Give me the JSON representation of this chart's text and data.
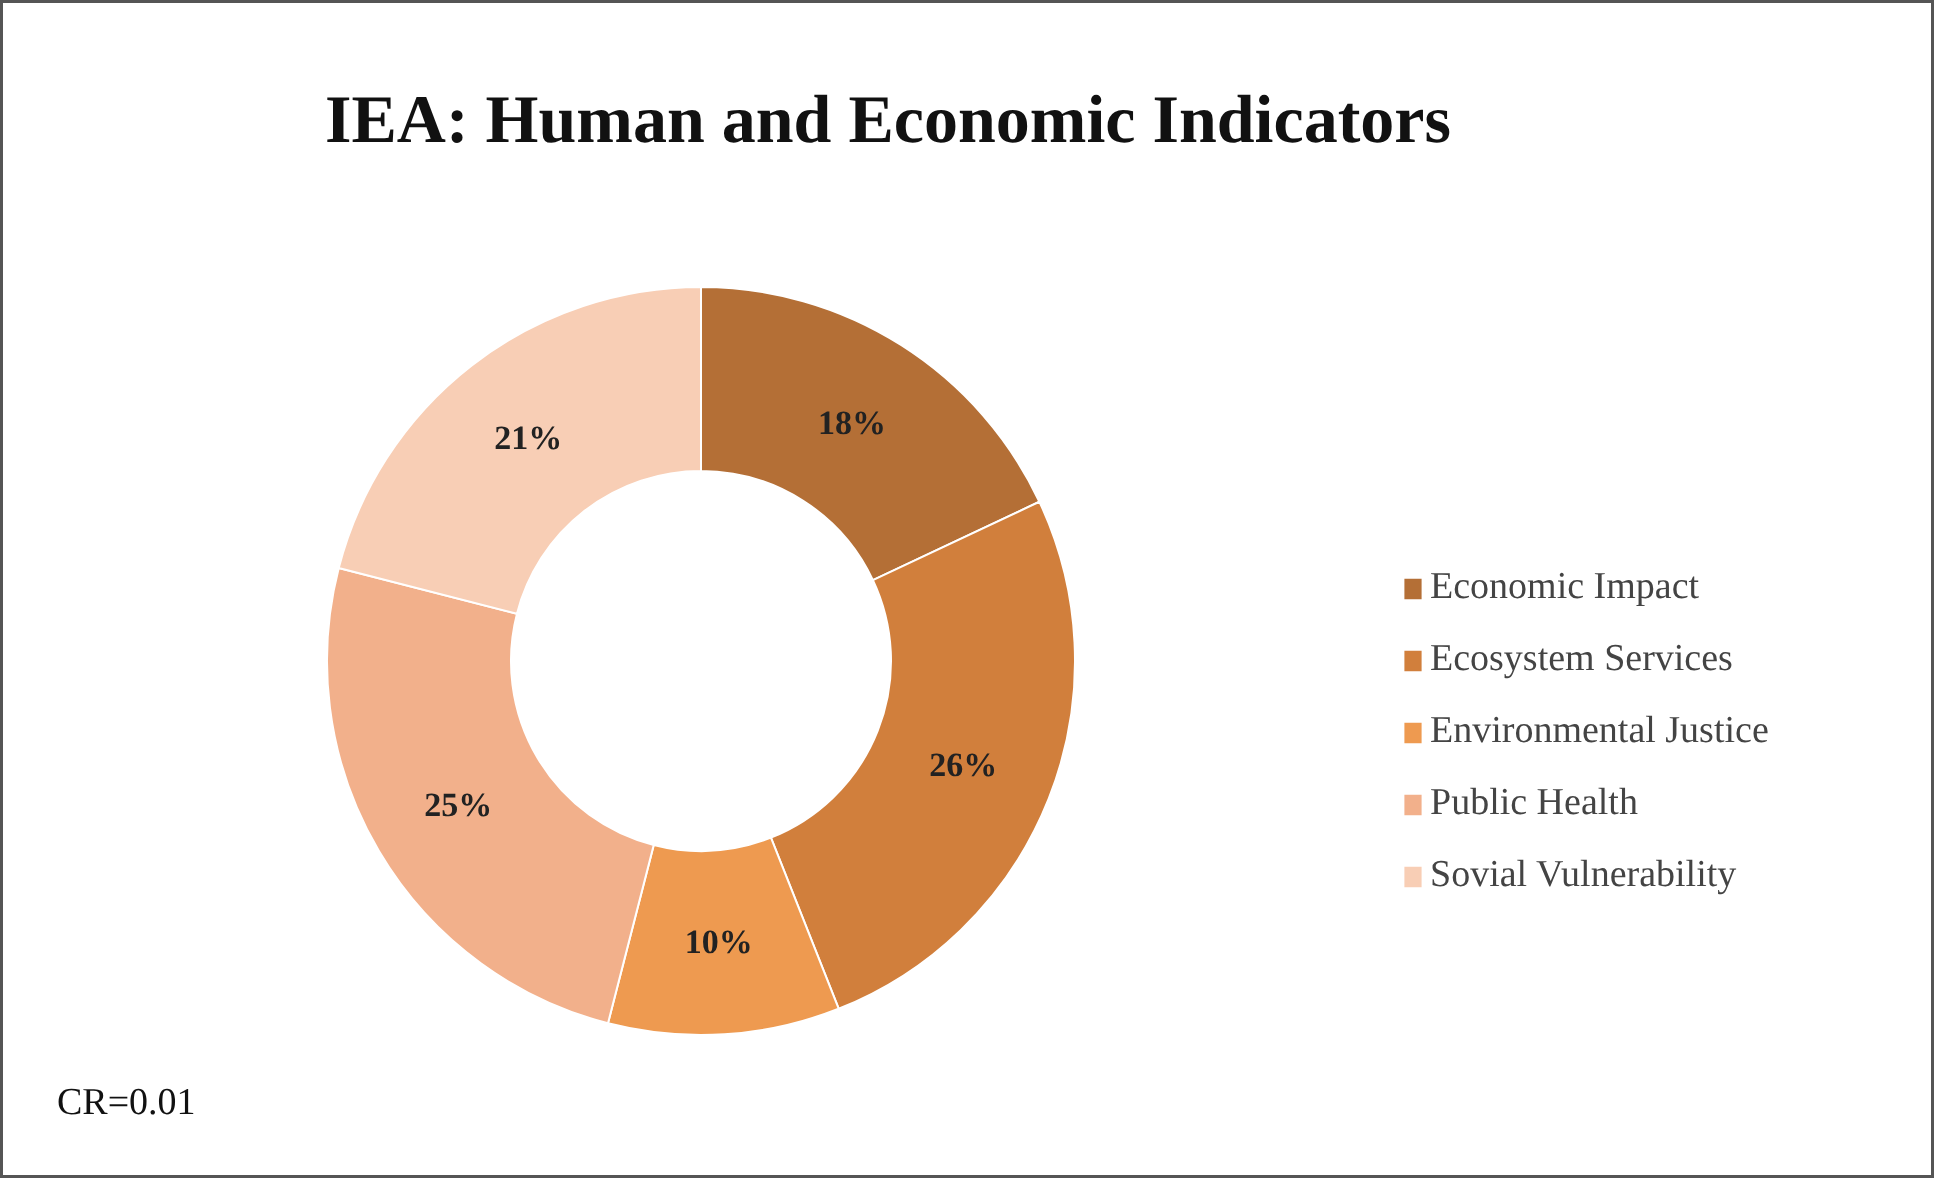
{
  "chart_data": {
    "type": "donut",
    "title": "IEA: Human and Economic Indicators",
    "categories": [
      "Economic Impact",
      "Ecosystem Services",
      "Environmental Justice",
      "Public Health",
      "Sovial Vulnerability"
    ],
    "values": [
      18,
      26,
      10,
      25,
      21
    ],
    "colors": [
      "#b46f36",
      "#d17f3c",
      "#ee9a50",
      "#f2b08b",
      "#f8ceb5"
    ],
    "value_labels": [
      "18%",
      "26%",
      "10%",
      "25%",
      "21%"
    ],
    "legend": "right",
    "annotations": [
      "CR=0.01"
    ]
  }
}
